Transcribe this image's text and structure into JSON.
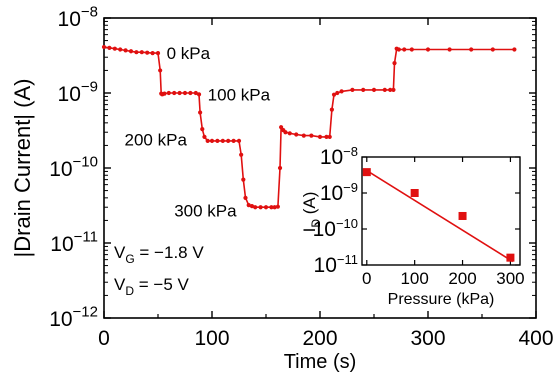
{
  "chart_data": [
    {
      "type": "line",
      "xlabel": "Time (s)",
      "ylabel": "|Drain Current| (A)",
      "xlim": [
        0,
        400
      ],
      "ylim": [
        1e-12,
        1e-08
      ],
      "yscale": "log",
      "xticks": [
        0,
        100,
        200,
        300,
        400
      ],
      "yticks": [
        {
          "value": 1e-08,
          "base": "10",
          "exp": "−8"
        },
        {
          "value": 1e-09,
          "base": "10",
          "exp": "−9"
        },
        {
          "value": 1e-10,
          "base": "10",
          "exp": "−10"
        },
        {
          "value": 1e-11,
          "base": "10",
          "exp": "−11"
        },
        {
          "value": 1e-12,
          "base": "10",
          "exp": "−12"
        }
      ],
      "grid": false,
      "series_color": "#e01010",
      "series": [
        {
          "x": [
            0,
            5,
            10,
            15,
            20,
            25,
            30,
            35,
            40,
            45,
            50,
            52,
            53,
            54,
            56,
            60,
            65,
            70,
            75,
            80,
            85,
            88,
            89,
            91,
            93,
            96,
            100,
            105,
            110,
            115,
            120,
            125,
            127,
            129,
            131,
            134,
            137,
            140,
            145,
            150,
            155,
            158,
            161,
            163,
            164,
            166,
            168,
            172,
            178,
            185,
            192,
            200,
            206,
            209,
            211,
            213,
            216,
            220,
            230,
            240,
            250,
            260,
            265,
            268,
            269,
            271,
            273,
            278,
            285,
            300,
            320,
            340,
            360,
            380
          ],
          "y": [
            4.1e-09,
            4e-09,
            3.9e-09,
            3.8e-09,
            3.7e-09,
            3.6e-09,
            3.5e-09,
            3.5e-09,
            3.45e-09,
            3.4e-09,
            3.4e-09,
            2e-09,
            9.8e-10,
            9.6e-10,
            9.8e-10,
            1e-09,
            1e-09,
            1e-09,
            1e-09,
            1e-09,
            1e-09,
            9.6e-10,
            5.5e-10,
            3.3e-10,
            2.6e-10,
            2.3e-10,
            2.3e-10,
            2.3e-10,
            2.3e-10,
            2.3e-10,
            2.3e-10,
            2.3e-10,
            1.5e-10,
            7e-11,
            4e-11,
            3.2e-11,
            3.1e-11,
            3e-11,
            3e-11,
            3e-11,
            3e-11,
            3e-11,
            3.05e-11,
            1e-10,
            3.5e-10,
            3.2e-10,
            3e-10,
            2.9e-10,
            2.8e-10,
            2.7e-10,
            2.7e-10,
            2.6e-10,
            2.6e-10,
            2.6e-10,
            6e-10,
            9.5e-10,
            1e-09,
            1.05e-09,
            1.1e-09,
            1.1e-09,
            1.1e-09,
            1.1e-09,
            1.1e-09,
            1.1e-09,
            2.5e-09,
            3.9e-09,
            3.8e-09,
            3.8e-09,
            3.8e-09,
            3.8e-09,
            3.8e-09,
            3.8e-09,
            3.8e-09,
            3.8e-09
          ]
        }
      ],
      "annotations": [
        {
          "text": "0 kPa",
          "x": 58,
          "y": 3.4e-09
        },
        {
          "text": "100 kPa",
          "x": 96,
          "y": 9.5e-10
        },
        {
          "text": "200 kPa",
          "x": 19,
          "y": 2.4e-10
        },
        {
          "text": "300 kPa",
          "x": 65,
          "y": 2.7e-11
        }
      ],
      "notes": [
        {
          "main": "V",
          "sub": "G",
          "rest": " = −1.8 V"
        },
        {
          "main": "V",
          "sub": "D",
          "rest": " = −5 V"
        }
      ]
    },
    {
      "type": "scatter",
      "inset": true,
      "xlabel": "Pressure (kPa)",
      "ylabel_main": "I",
      "ylabel_sub": "D",
      "ylabel_rest": " (A)",
      "xlim": [
        -10,
        320
      ],
      "ylim": [
        1e-11,
        1e-08
      ],
      "yscale": "log",
      "xticks": [
        0,
        100,
        200,
        300
      ],
      "yticks": [
        {
          "value": 1e-08,
          "base": "10",
          "exp": "−8"
        },
        {
          "value": 1e-09,
          "base": "10",
          "exp": "−9"
        },
        {
          "value": 1e-10,
          "base": "10",
          "exp": "−10"
        },
        {
          "value": 1e-11,
          "base": "10",
          "exp": "−11"
        }
      ],
      "points": {
        "x": [
          0,
          100,
          200,
          300
        ],
        "y": [
          3.8e-09,
          1e-09,
          2.3e-10,
          1.6e-11
        ]
      },
      "fit_line": {
        "x": [
          0,
          305
        ],
        "y": [
          4.2e-09,
          1.25e-11
        ]
      },
      "marker_color": "#e01010"
    }
  ]
}
